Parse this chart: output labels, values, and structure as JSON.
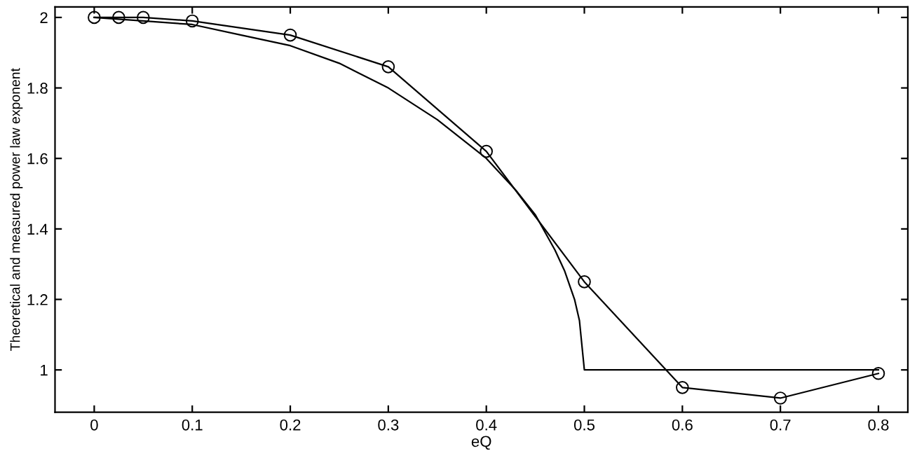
{
  "chart_data": {
    "type": "line",
    "xlabel": "eQ",
    "ylabel": "Theoretical and measured power law exponent",
    "xlim": [
      -0.04,
      0.83
    ],
    "ylim": [
      0.88,
      2.03
    ],
    "xticks": [
      0,
      0.1,
      0.2,
      0.3,
      0.4,
      0.5,
      0.6,
      0.7,
      0.8
    ],
    "yticks": [
      1,
      1.2,
      1.4,
      1.6,
      1.8,
      2
    ],
    "grid": false,
    "legend": false,
    "series": [
      {
        "color": "#000000",
        "marker": "none",
        "x": [
          0,
          0.05,
          0.1,
          0.15,
          0.2,
          0.25,
          0.3,
          0.35,
          0.4,
          0.43,
          0.45,
          0.47,
          0.48,
          0.49,
          0.495,
          0.5,
          0.5,
          0.8
        ],
        "values": [
          2,
          1.99,
          1.98,
          1.95,
          1.92,
          1.87,
          1.8,
          1.71,
          1.6,
          1.51,
          1.44,
          1.34,
          1.28,
          1.2,
          1.14,
          1.0,
          1.0,
          1.0
        ]
      },
      {
        "color": "#000000",
        "marker": "circle",
        "x": [
          0,
          0.025,
          0.05,
          0.1,
          0.2,
          0.3,
          0.4,
          0.5,
          0.6,
          0.7,
          0.8
        ],
        "values": [
          2,
          2,
          2,
          1.99,
          1.95,
          1.86,
          1.62,
          1.25,
          0.95,
          0.92,
          0.99
        ]
      }
    ]
  }
}
